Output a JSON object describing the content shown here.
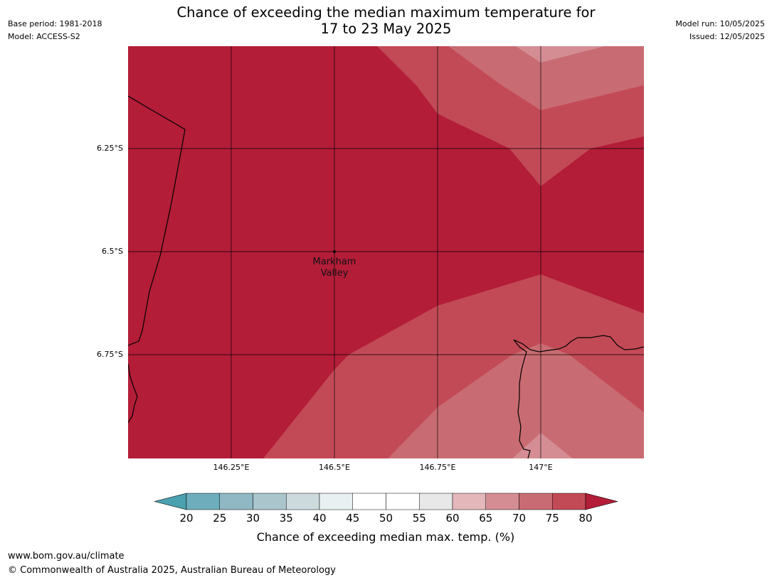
{
  "title": {
    "line1": "Chance of exceeding the median maximum temperature for",
    "line2": "17 to 23 May 2025"
  },
  "meta_left": {
    "base_period": "Base period: 1981-2018",
    "model": "Model: ACCESS-S2"
  },
  "meta_right": {
    "model_run": "Model run: 10/05/2025",
    "issued": "Issued: 12/05/2025"
  },
  "map": {
    "lat_ticks": [
      "6.25°S",
      "6.5°S",
      "6.75°S"
    ],
    "lon_ticks": [
      "146.25°E",
      "146.5°E",
      "146.75°E",
      "147°E"
    ],
    "place": {
      "name": "Markham Valley",
      "lat": -6.5,
      "lon": 146.5
    },
    "extent": {
      "lon_min": 146.0,
      "lon_max": 147.25,
      "lat_max": -6.0,
      "lat_min": -7.0
    },
    "colors": {
      "band_75_80": "#b31d38",
      "band_70_75": "#c24a56",
      "band_65_70": "#c96b72",
      "band_60_65": "#d58d94",
      "coast": "#000000",
      "grid": "#000000"
    }
  },
  "colorbar": {
    "labels": [
      "20",
      "25",
      "30",
      "35",
      "40",
      "45",
      "50",
      "55",
      "60",
      "65",
      "70",
      "75",
      "80"
    ],
    "colors": [
      "#4ba1b0",
      "#6eaebc",
      "#8fb7c4",
      "#aac5cc",
      "#ccdadd",
      "#e9f0f1",
      "#ffffff",
      "#ffffff",
      "#e8e8e8",
      "#e4b7bb",
      "#d58d94",
      "#c96b72",
      "#c24a56",
      "#b31d38"
    ],
    "title": "Chance of exceeding median max. temp. (%)"
  },
  "footer": {
    "url": "www.bom.gov.au/climate",
    "copyright": "© Commonwealth of Australia 2025, Australian Bureau of Meteorology"
  }
}
